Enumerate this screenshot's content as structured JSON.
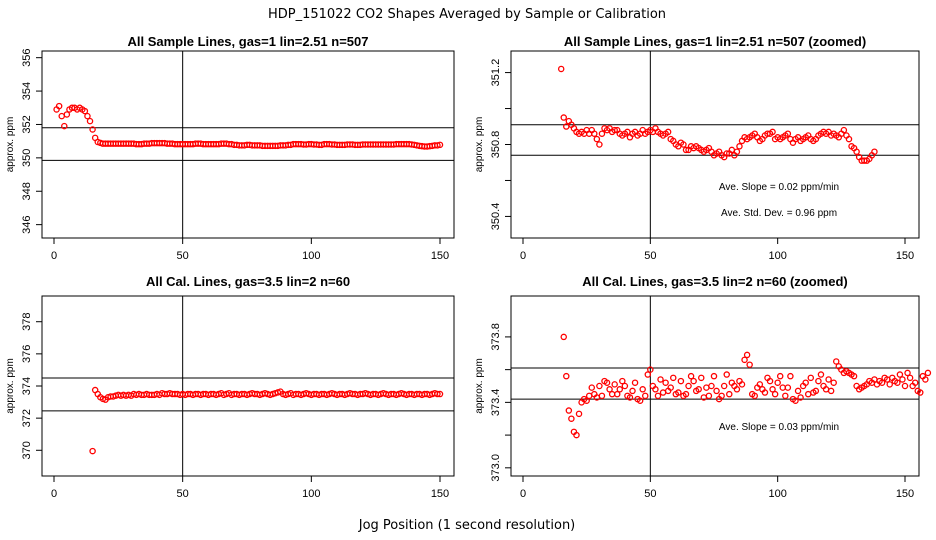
{
  "figure": {
    "title": "HDP_151022  CO2 Shapes Averaged by Sample or Calibration",
    "xlabel": "Jog Position (1 second resolution)"
  },
  "chart_data": [
    {
      "type": "scatter",
      "title": "All Sample Lines, gas=1 lin=2.51 n=507",
      "ylabel": "approx. ppm",
      "xlim": [
        0,
        150
      ],
      "ylim": [
        345.2,
        356.4
      ],
      "xticks": [
        0,
        50,
        100,
        150
      ],
      "yticks": [
        346,
        348,
        350,
        352,
        354,
        356
      ],
      "vline": 50,
      "hlines": [
        349.85,
        351.8
      ],
      "annotations": [],
      "points": {
        "x_start": 1,
        "y": [
          352.9,
          353.1,
          352.5,
          351.9,
          352.6,
          352.9,
          353.0,
          353.0,
          352.9,
          353.0,
          352.9,
          352.8,
          352.5,
          352.2,
          351.7,
          351.2,
          350.95,
          350.9,
          350.85,
          350.85,
          350.85,
          350.85,
          350.85,
          350.85,
          350.85,
          350.85,
          350.85,
          350.85,
          350.85,
          350.85,
          350.85,
          350.82,
          350.82,
          350.82,
          350.85,
          350.85,
          350.85,
          350.88,
          350.88,
          350.88,
          350.88,
          350.88,
          350.88,
          350.85,
          350.85,
          350.85,
          350.82,
          350.82,
          350.82,
          350.82,
          350.82,
          350.82,
          350.82,
          350.82,
          350.85,
          350.85,
          350.85,
          350.82,
          350.82,
          350.82,
          350.82,
          350.82,
          350.82,
          350.82,
          350.85,
          350.85,
          350.85,
          350.82,
          350.82,
          350.78,
          350.78,
          350.75,
          350.75,
          350.75,
          350.78,
          350.78,
          350.75,
          350.75,
          350.75,
          350.75,
          350.72,
          350.72,
          350.72,
          350.72,
          350.72,
          350.72,
          350.72,
          350.75,
          350.75,
          350.75,
          350.78,
          350.78,
          350.82,
          350.82,
          350.82,
          350.82,
          350.8,
          350.8,
          350.82,
          350.82,
          350.8,
          350.8,
          350.78,
          350.78,
          350.82,
          350.82,
          350.82,
          350.8,
          350.8,
          350.78,
          350.78,
          350.78,
          350.78,
          350.8,
          350.8,
          350.8,
          350.78,
          350.78,
          350.78,
          350.8,
          350.8,
          350.8,
          350.8,
          350.8,
          350.8,
          350.8,
          350.8,
          350.8,
          350.8,
          350.8,
          350.8,
          350.8,
          350.82,
          350.82,
          350.82,
          350.82,
          350.82,
          350.82,
          350.8,
          350.78,
          350.75,
          350.72,
          350.7,
          350.68,
          350.68,
          350.7,
          350.72,
          350.75,
          350.75,
          350.78
        ]
      }
    },
    {
      "type": "scatter",
      "title": "All Sample Lines, gas=1 lin=2.51 n=507 (zoomed)",
      "ylabel": "approx. ppm",
      "xlim": [
        0,
        150
      ],
      "ylim": [
        350.28,
        351.32
      ],
      "xticks": [
        0,
        50,
        100,
        150
      ],
      "yticks": [
        350.4,
        350.6,
        350.8,
        351.0,
        351.2
      ],
      "ytick_labels": [
        "350.4",
        "",
        "350.8",
        "",
        "351.2"
      ],
      "vline": 50,
      "hlines": [
        350.74,
        350.91
      ],
      "annotations": [
        "Ave. Slope =  0.02  ppm/min",
        "Ave. Std. Dev. =  0.96  ppm"
      ],
      "points": {
        "x_start": 15,
        "y": [
          351.22,
          350.95,
          350.9,
          350.93,
          350.91,
          350.89,
          350.87,
          350.86,
          350.87,
          350.86,
          350.88,
          350.86,
          350.88,
          350.86,
          350.83,
          350.8,
          350.86,
          350.89,
          350.88,
          350.89,
          350.87,
          350.88,
          350.88,
          350.86,
          350.85,
          350.86,
          350.87,
          350.84,
          350.86,
          350.87,
          350.85,
          350.86,
          350.88,
          350.86,
          350.87,
          350.88,
          350.87,
          350.89,
          350.87,
          350.86,
          350.85,
          350.86,
          350.87,
          350.83,
          350.82,
          350.8,
          350.79,
          350.81,
          350.8,
          350.77,
          350.77,
          350.79,
          350.78,
          350.79,
          350.78,
          350.77,
          350.76,
          350.77,
          350.78,
          350.76,
          350.74,
          350.75,
          350.76,
          350.74,
          350.73,
          350.75,
          350.75,
          350.77,
          350.74,
          350.76,
          350.79,
          350.82,
          350.84,
          350.83,
          350.84,
          350.85,
          350.86,
          350.84,
          350.82,
          350.83,
          350.85,
          350.86,
          350.86,
          350.87,
          350.83,
          350.84,
          350.83,
          350.84,
          350.85,
          350.86,
          350.83,
          350.81,
          350.83,
          350.84,
          350.82,
          350.83,
          350.84,
          350.85,
          350.83,
          350.82,
          350.83,
          350.85,
          350.86,
          350.87,
          350.86,
          350.87,
          350.85,
          350.86,
          350.85,
          350.84,
          350.86,
          350.88,
          350.85,
          350.83,
          350.79,
          350.78,
          350.76,
          350.73,
          350.71,
          350.71,
          350.71,
          350.72,
          350.74,
          350.76
        ]
      }
    },
    {
      "type": "scatter",
      "title": "All Cal. Lines, gas=3.5 lin=2 n=60",
      "ylabel": "approx. ppm",
      "xlim": [
        0,
        150
      ],
      "ylim": [
        368.4,
        379.6
      ],
      "xticks": [
        0,
        50,
        100,
        150
      ],
      "yticks": [
        370,
        372,
        374,
        376,
        378
      ],
      "vline": 50,
      "hlines": [
        372.45,
        374.5
      ],
      "annotations": [],
      "points": {
        "x_start": 15,
        "y": [
          369.95,
          373.75,
          373.5,
          373.3,
          373.2,
          373.15,
          373.3,
          373.35,
          373.35,
          373.4,
          373.45,
          373.4,
          373.45,
          373.4,
          373.45,
          373.4,
          373.5,
          373.45,
          373.5,
          373.45,
          373.45,
          373.5,
          373.45,
          373.45,
          373.45,
          373.5,
          373.45,
          373.55,
          373.5,
          373.5,
          373.55,
          373.5,
          373.5,
          373.5,
          373.45,
          373.5,
          373.45,
          373.5,
          373.5,
          373.45,
          373.5,
          373.5,
          373.45,
          373.5,
          373.5,
          373.45,
          373.5,
          373.5,
          373.45,
          373.5,
          373.55,
          373.45,
          373.5,
          373.55,
          373.45,
          373.5,
          373.5,
          373.45,
          373.5,
          373.5,
          373.45,
          373.5,
          373.55,
          373.5,
          373.5,
          373.45,
          373.5,
          373.55,
          373.5,
          373.45,
          373.5,
          373.55,
          373.6,
          373.65,
          373.5,
          373.45,
          373.5,
          373.55,
          373.45,
          373.5,
          373.5,
          373.45,
          373.5,
          373.55,
          373.5,
          373.45,
          373.5,
          373.5,
          373.45,
          373.5,
          373.5,
          373.45,
          373.5,
          373.55,
          373.5,
          373.45,
          373.5,
          373.5,
          373.45,
          373.5,
          373.55,
          373.5,
          373.5,
          373.45,
          373.5,
          373.5,
          373.55,
          373.5,
          373.45,
          373.5,
          373.5,
          373.45,
          373.5,
          373.55,
          373.5,
          373.45,
          373.5,
          373.5,
          373.45,
          373.5,
          373.55,
          373.5,
          373.45,
          373.5,
          373.5,
          373.45,
          373.5,
          373.5,
          373.45,
          373.5,
          373.5,
          373.45,
          373.5,
          373.55,
          373.5,
          373.5
        ]
      }
    },
    {
      "type": "scatter",
      "title": "All Cal. Lines, gas=3.5 lin=2 n=60 (zoomed)",
      "ylabel": "approx. ppm",
      "xlim": [
        0,
        150
      ],
      "ylim": [
        372.95,
        374.05
      ],
      "xticks": [
        0,
        50,
        100,
        150
      ],
      "yticks": [
        373.0,
        373.2,
        373.4,
        373.6,
        373.8
      ],
      "ytick_labels": [
        "373.0",
        "",
        "373.4",
        "",
        "373.8"
      ],
      "vline": 50,
      "hlines": [
        373.42,
        373.61
      ],
      "annotations": [
        "Ave. Slope =  0.03  ppm/min"
      ],
      "points": {
        "x_start": 16,
        "y": [
          373.8,
          373.56,
          373.35,
          373.3,
          373.22,
          373.2,
          373.33,
          373.4,
          373.42,
          373.41,
          373.44,
          373.49,
          373.45,
          373.43,
          373.5,
          373.44,
          373.53,
          373.52,
          373.48,
          373.45,
          373.51,
          373.45,
          373.48,
          373.53,
          373.5,
          373.44,
          373.43,
          373.47,
          373.52,
          373.42,
          373.41,
          373.48,
          373.44,
          373.57,
          373.6,
          373.5,
          373.48,
          373.44,
          373.54,
          373.46,
          373.52,
          373.47,
          373.49,
          373.55,
          373.45,
          373.46,
          373.53,
          373.44,
          373.45,
          373.5,
          373.56,
          373.53,
          373.47,
          373.48,
          373.55,
          373.43,
          373.49,
          373.44,
          373.5,
          373.56,
          373.47,
          373.42,
          373.44,
          373.5,
          373.57,
          373.45,
          373.52,
          373.5,
          373.48,
          373.53,
          373.51,
          373.66,
          373.69,
          373.63,
          373.45,
          373.44,
          373.49,
          373.51,
          373.48,
          373.46,
          373.55,
          373.53,
          373.48,
          373.45,
          373.52,
          373.56,
          373.49,
          373.44,
          373.49,
          373.56,
          373.42,
          373.41,
          373.47,
          373.43,
          373.5,
          373.52,
          373.45,
          373.55,
          373.46,
          373.47,
          373.53,
          373.57,
          373.5,
          373.48,
          373.54,
          373.47,
          373.52,
          373.65,
          373.62,
          373.6,
          373.58,
          373.59,
          373.58,
          373.57,
          373.56,
          373.5,
          373.48,
          373.49,
          373.5,
          373.51,
          373.53,
          373.52,
          373.54,
          373.51,
          373.53,
          373.52,
          373.55,
          373.54,
          373.51,
          373.55,
          373.53,
          373.52,
          373.57,
          373.54,
          373.5,
          373.58,
          373.55,
          373.5,
          373.52,
          373.47,
          373.46,
          373.56,
          373.54,
          373.58
        ]
      }
    }
  ]
}
